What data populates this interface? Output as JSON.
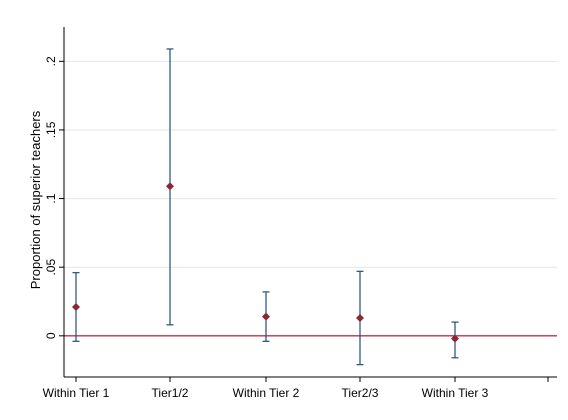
{
  "chart_data": {
    "type": "scatter",
    "subtype": "point-with-error-bars",
    "categories": [
      "Within Tier 1",
      "Tier1/2",
      "Within Tier 2",
      "Tier2/3",
      "Within Tier 3"
    ],
    "estimates": [
      0.021,
      0.109,
      0.014,
      0.013,
      -0.002
    ],
    "ci_lower": [
      -0.004,
      0.008,
      -0.004,
      -0.021,
      -0.016
    ],
    "ci_upper": [
      0.046,
      0.209,
      0.032,
      0.047,
      0.01
    ],
    "reference_line": 0,
    "ylabel": "Proportion of superior teachers",
    "xlabel": "",
    "title": "",
    "ylim": [
      -0.03,
      0.225
    ],
    "y_ticks": [
      0,
      0.05,
      0.1,
      0.15,
      0.2
    ],
    "y_tick_labels": [
      "0",
      ".05",
      ".1",
      ".15",
      ".2"
    ],
    "grid": "horizontal",
    "colors": {
      "error_bar": "#1f4e79",
      "point": "#8b2635",
      "reference_line": "#c0304a",
      "grid": "#e6e6e6"
    }
  }
}
